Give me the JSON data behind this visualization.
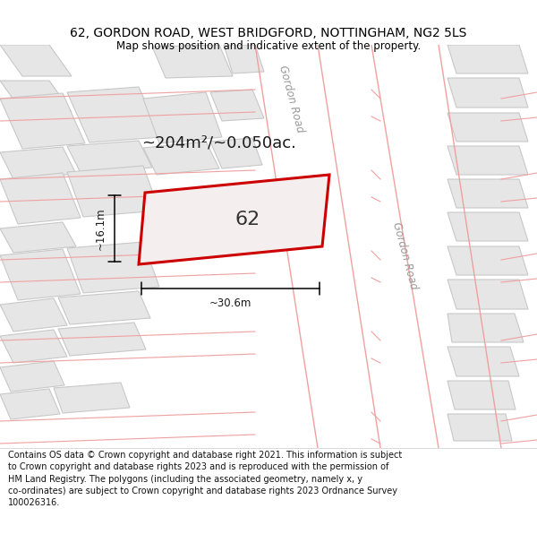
{
  "title": "62, GORDON ROAD, WEST BRIDGFORD, NOTTINGHAM, NG2 5LS",
  "subtitle": "Map shows position and indicative extent of the property.",
  "footer": "Contains OS data © Crown copyright and database right 2021. This information is subject\nto Crown copyright and database rights 2023 and is reproduced with the permission of\nHM Land Registry. The polygons (including the associated geometry, namely x, y\nco-ordinates) are subject to Crown copyright and database rights 2023 Ordnance Survey\n100026316.",
  "area_label": "~204m²/~0.050ac.",
  "width_label": "~30.6m",
  "height_label": "~16.1m",
  "property_label": "62",
  "map_bg": "#f9f6f6",
  "building_fill": "#e6e6e6",
  "building_edge": "#c8c8c8",
  "prop_fill": "#f5eeee",
  "prop_edge": "#cc0000",
  "pink_line_color": "#f0a0a0",
  "road_label_color": "#999999",
  "title_fontsize": 10,
  "subtitle_fontsize": 8.5,
  "footer_fontsize": 7,
  "area_fontsize": 13,
  "dim_fontsize": 8.5,
  "road_fontsize": 8.5,
  "prop_label_fontsize": 16,
  "gordon_road_label": "Gordon Road"
}
